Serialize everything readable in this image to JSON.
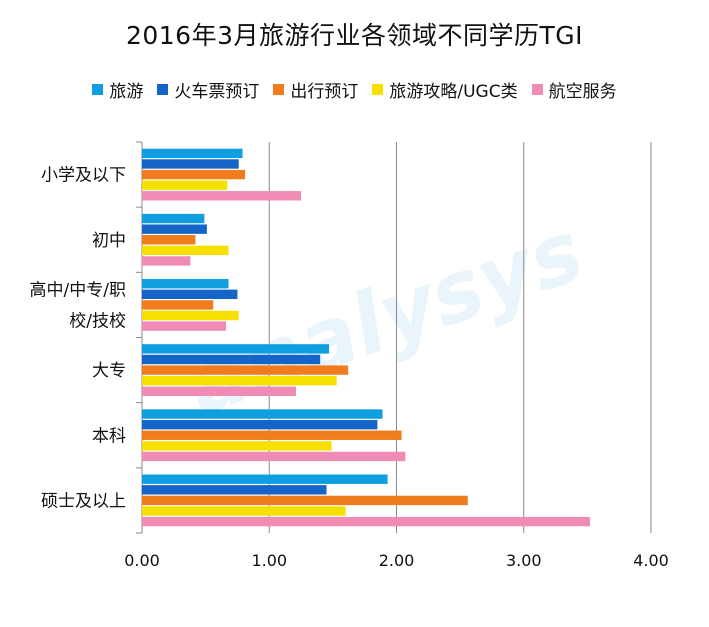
{
  "chart_data": {
    "type": "bar",
    "orientation": "horizontal",
    "title": "2016年3月旅游行业各领域不同学历TGI",
    "watermark": "analysys",
    "categories": [
      "小学及以下",
      "初中",
      "高中/中专/职校/技校",
      "大专",
      "本科",
      "硕士及以上"
    ],
    "category_lines": [
      [
        "小学及以下"
      ],
      [
        "初中"
      ],
      [
        "高中/中专/职",
        "校/技校"
      ],
      [
        "大专"
      ],
      [
        "本科"
      ],
      [
        "硕士及以上"
      ]
    ],
    "series": [
      {
        "name": "旅游",
        "color": "#0f9ee0",
        "values": [
          0.79,
          0.49,
          0.68,
          1.47,
          1.89,
          1.93
        ]
      },
      {
        "name": "火车票预订",
        "color": "#1565c9",
        "values": [
          0.76,
          0.51,
          0.75,
          1.4,
          1.85,
          1.45
        ]
      },
      {
        "name": "出行预订",
        "color": "#f07c1e",
        "values": [
          0.81,
          0.42,
          0.56,
          1.62,
          2.04,
          2.56
        ]
      },
      {
        "name": "旅游攻略/UGC类",
        "color": "#f7e000",
        "values": [
          0.67,
          0.68,
          0.76,
          1.53,
          1.49,
          1.6
        ]
      },
      {
        "name": "航空服务",
        "color": "#f08bb5",
        "values": [
          1.25,
          0.38,
          0.66,
          1.21,
          2.07,
          3.52
        ]
      }
    ],
    "xlim": [
      0,
      4
    ],
    "xticks": [
      "0.00",
      "1.00",
      "2.00",
      "3.00",
      "4.00"
    ],
    "grid": true,
    "legend_position": "top"
  }
}
